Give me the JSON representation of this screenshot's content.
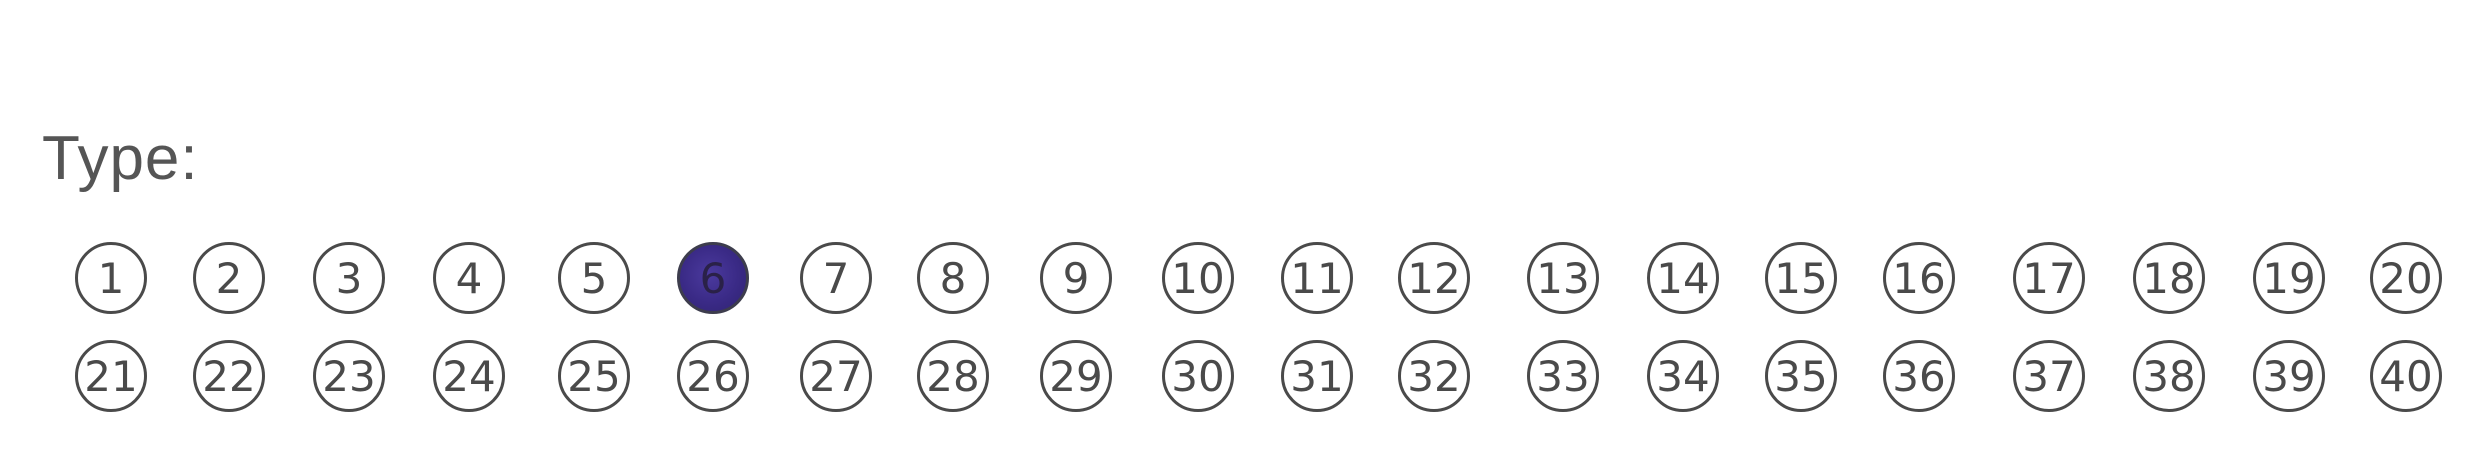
{
  "form": {
    "type_label": "Type:",
    "rows": [
      [
        "1",
        "2",
        "3",
        "4",
        "5",
        "6",
        "7",
        "8",
        "9",
        "10",
        "11",
        "12",
        "13",
        "14",
        "15",
        "16",
        "17",
        "18",
        "19",
        "20"
      ],
      [
        "21",
        "22",
        "23",
        "24",
        "25",
        "26",
        "27",
        "28",
        "29",
        "30",
        "31",
        "32",
        "33",
        "34",
        "35",
        "36",
        "37",
        "38",
        "39",
        "40"
      ]
    ],
    "selected": "6",
    "colors": {
      "ink": "#4a4a4a",
      "label": "#555555",
      "fill": "#3a2a86"
    }
  }
}
